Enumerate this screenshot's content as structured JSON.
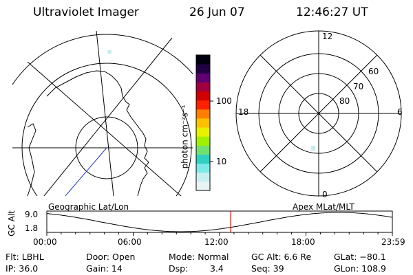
{
  "header": {
    "instrument": "Ultraviolet Imager",
    "date": "26 Jun 07",
    "time": "12:46:27 UT"
  },
  "colorbar": {
    "unit_label": "photon cm⁻²s⁻¹",
    "ticks": [
      "100",
      "10"
    ],
    "colors": [
      "#e8f4f4",
      "#c8f0f0",
      "#7fe8e8",
      "#30d0c0",
      "#70e070",
      "#a0f000",
      "#e8f000",
      "#ffc000",
      "#ff8000",
      "#ff2000",
      "#d00000",
      "#a00040",
      "#600070",
      "#200040",
      "#000010"
    ]
  },
  "left_map": {
    "label": "Geographic Lat/Lon"
  },
  "right_map": {
    "label": "Apex  MLat/MLT",
    "mlt_labels": {
      "top": "12",
      "left": "18",
      "right": "6",
      "bottom": "0"
    },
    "lat_labels": [
      "60",
      "70",
      "80"
    ]
  },
  "altitude_strip": {
    "axis_label": "GC Alt",
    "y_top": "9.0",
    "y_bottom": "1.8",
    "x_ticks": [
      "00:00",
      "06:00",
      "12:00",
      "18:00",
      "23:59"
    ],
    "marker_time": "12:46:27",
    "marker_color": "#d00000"
  },
  "status": {
    "filter": "Flt: LBHL",
    "door": "Door: Open",
    "mode": "Mode: Normal",
    "gc_alt": "GC Alt: 6.6 Re",
    "glat": "GLat: −80.1",
    "ip": "IP: 36.0",
    "gain": "Gain: 14",
    "dsp_label": "Dsp:",
    "dsp_value": "3.4",
    "seq": "Seq: 39",
    "glon": "GLon: 108.9"
  }
}
